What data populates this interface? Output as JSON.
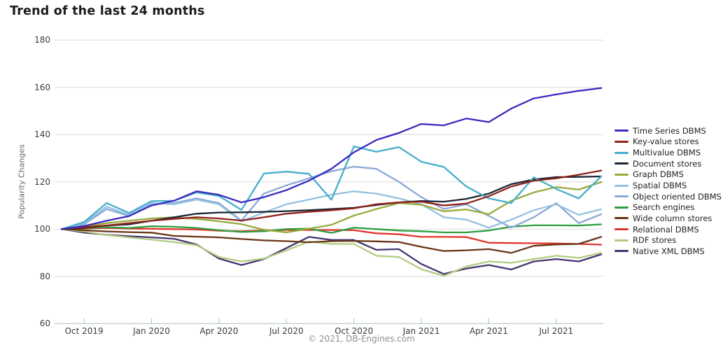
{
  "page": {
    "title": "Trend of the last 24 months",
    "footer": "© 2021, DB-Engines.com"
  },
  "chart_data": {
    "type": "line",
    "title": "Trend of the last 24 months",
    "xlabel": "",
    "ylabel": "Popularity Changes",
    "x_unit": "month",
    "x_start": "Sep 2019",
    "x_end": "Sep 2021",
    "n_points": 25,
    "ylim": [
      60,
      185
    ],
    "grid": true,
    "legend_position": "right",
    "y_ticks": [
      180,
      160,
      140,
      120,
      100,
      80,
      60
    ],
    "x_ticks": [
      {
        "label": "Oct 2019",
        "month_index": 1
      },
      {
        "label": "Jan 2020",
        "month_index": 4
      },
      {
        "label": "Apr 2020",
        "month_index": 7
      },
      {
        "label": "Jul 2020",
        "month_index": 10
      },
      {
        "label": "Oct 2020",
        "month_index": 13
      },
      {
        "label": "Jan 2021",
        "month_index": 16
      },
      {
        "label": "Apr 2021",
        "month_index": 19
      },
      {
        "label": "Jul 2021",
        "month_index": 22
      }
    ],
    "series": [
      {
        "name": "Time Series DBMS",
        "color": "#3a2bbd",
        "values": [
          100,
          101.3,
          103.5,
          105.5,
          110,
          112,
          116,
          114.5,
          111.3,
          113.5,
          116.5,
          120.5,
          125.5,
          132.5,
          137.7,
          140.7,
          144.5,
          143.9,
          146.8,
          145.3,
          151,
          155.3,
          157,
          158.5,
          159.7
        ]
      },
      {
        "name": "Key-value stores",
        "color": "#8f211b",
        "values": [
          100,
          100.8,
          101.5,
          102.5,
          103.5,
          104.3,
          105,
          104.5,
          103.6,
          105,
          106.5,
          107.3,
          108,
          108.8,
          110.5,
          111.3,
          111.6,
          110,
          110.8,
          113.9,
          118,
          120.5,
          121.5,
          123,
          124.8
        ]
      },
      {
        "name": "Multivalue DBMS",
        "color": "#45aecc",
        "values": [
          100,
          103,
          111,
          106.8,
          111.8,
          112,
          115.5,
          114,
          108.1,
          123.5,
          124.3,
          123.4,
          112.4,
          135,
          132.7,
          134.7,
          128.5,
          126.3,
          118,
          113,
          111,
          121.9,
          117,
          113,
          122.3
        ]
      },
      {
        "name": "Document stores",
        "color": "#192734",
        "values": [
          100,
          100.5,
          101.5,
          102,
          103.5,
          105,
          106.5,
          107,
          107.1,
          107.3,
          107.6,
          108,
          108.5,
          109,
          110.2,
          111.3,
          111.9,
          111.6,
          112.8,
          115,
          119,
          121,
          122,
          122.1,
          122.3
        ]
      },
      {
        "name": "Graph DBMS",
        "color": "#97ab3b",
        "values": [
          100,
          101,
          102.5,
          103.5,
          104.5,
          105,
          104.3,
          103.3,
          102.1,
          99.7,
          98.6,
          100.2,
          101.8,
          105.7,
          108.5,
          111,
          110.3,
          107.5,
          108.3,
          106.3,
          112,
          115.5,
          117.8,
          116.7,
          119.9
        ]
      },
      {
        "name": "Spatial DBMS",
        "color": "#92c1e0",
        "values": [
          100,
          102.5,
          109.5,
          106,
          111,
          110.5,
          112.5,
          110.5,
          103.3,
          107,
          110.5,
          112.5,
          114.5,
          116,
          115,
          113,
          110.5,
          105,
          104,
          100.6,
          104,
          108,
          110.5,
          106,
          108.4
        ]
      },
      {
        "name": "Object oriented DBMS",
        "color": "#8aa8d8",
        "values": [
          100,
          102,
          108.5,
          105.5,
          110.5,
          111,
          113,
          111,
          103.6,
          115,
          118.5,
          121.5,
          124.5,
          126.4,
          125.5,
          120,
          113.5,
          108.5,
          110.5,
          105.6,
          100.6,
          105,
          111,
          102.5,
          106.3
        ]
      },
      {
        "name": "Search engines",
        "color": "#2e9e41",
        "values": [
          100,
          100.5,
          100.8,
          100.5,
          101.2,
          101,
          100.5,
          99.5,
          98.8,
          99.1,
          100,
          100.2,
          98.4,
          100.6,
          100,
          99.4,
          99.1,
          98.6,
          98.6,
          99.4,
          101,
          101.6,
          101.6,
          101.5,
          102
        ]
      },
      {
        "name": "Wide column stores",
        "color": "#693516",
        "values": [
          100,
          99.5,
          99,
          98.7,
          98.5,
          97.1,
          96.8,
          96.5,
          95.8,
          95.2,
          94.9,
          94.4,
          94.9,
          95,
          94.8,
          94.5,
          92.5,
          90.7,
          91,
          91.5,
          89.9,
          92.9,
          93.5,
          93.7,
          96.7
        ]
      },
      {
        "name": "Relational DBMS",
        "color": "#e1352c",
        "values": [
          100,
          100.3,
          100.5,
          100.2,
          100.1,
          100,
          99.8,
          99.3,
          99.1,
          99.4,
          99.6,
          99.6,
          99.6,
          99.5,
          98.2,
          97.8,
          96.7,
          96.7,
          96.6,
          94.2,
          94.1,
          94,
          93.9,
          93.7,
          93.4
        ]
      },
      {
        "name": "RDF stores",
        "color": "#b1cc80",
        "values": [
          100,
          99,
          97.5,
          96.5,
          95.5,
          94.5,
          93.2,
          88.2,
          86.3,
          87.5,
          91,
          94.7,
          93.7,
          93.7,
          88.7,
          88.2,
          83,
          80.2,
          84.2,
          86.3,
          85.7,
          87.3,
          88.7,
          87.8,
          89.9
        ]
      },
      {
        "name": "Native XML DBMS",
        "color": "#453570",
        "values": [
          100,
          98.5,
          97.6,
          97,
          96.5,
          95.9,
          93.5,
          87.5,
          84.8,
          87.3,
          92,
          96.7,
          95.4,
          95.4,
          91.2,
          91.5,
          85.2,
          81,
          83.3,
          84.8,
          82.9,
          86.3,
          87.3,
          86.3,
          89.3
        ]
      }
    ]
  }
}
